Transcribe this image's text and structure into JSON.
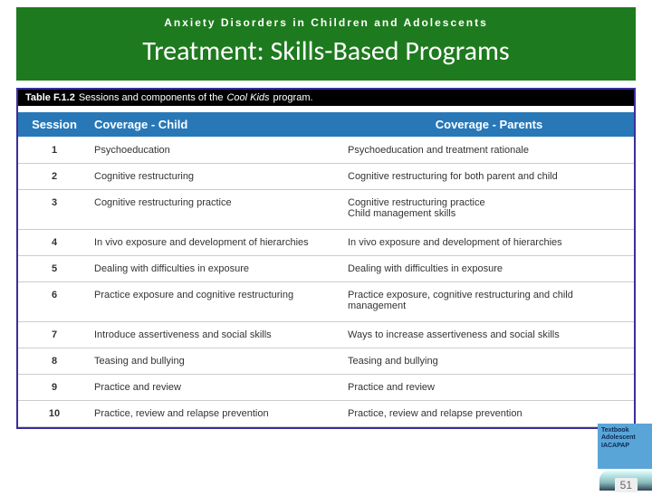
{
  "header": {
    "subtitle": "Anxiety Disorders in Children and Adolescents",
    "title": "Treatment: Skills-Based Programs"
  },
  "table": {
    "caption_prefix": "Table F.1.2",
    "caption_mid": "Sessions and components of the",
    "caption_italic": "Cool Kids",
    "caption_suffix": "program.",
    "head": {
      "session": "Session",
      "child": "Coverage - Child",
      "parent": "Coverage - Parents"
    },
    "rows": [
      {
        "n": "1",
        "child": "Psychoeducation",
        "parent": "Psychoeducation and treatment rationale"
      },
      {
        "n": "2",
        "child": "Cognitive restructuring",
        "parent": "Cognitive restructuring for both parent and child"
      },
      {
        "n": "3",
        "child": "Cognitive restructuring practice",
        "parent": "Cognitive restructuring practice\nChild management skills"
      },
      {
        "n": "4",
        "child": "In vivo exposure and development of hierarchies",
        "parent": "In vivo exposure and development of hierarchies"
      },
      {
        "n": "5",
        "child": "Dealing with difficulties in exposure",
        "parent": "Dealing with difficulties in exposure"
      },
      {
        "n": "6",
        "child": "Practice exposure and cognitive restructuring",
        "parent": "Practice exposure, cognitive restructuring and child management"
      },
      {
        "n": "7",
        "child": "Introduce assertiveness and social skills",
        "parent": "Ways to increase assertiveness and social skills"
      },
      {
        "n": "8",
        "child": "Teasing and bullying",
        "parent": "Teasing and bullying"
      },
      {
        "n": "9",
        "child": "Practice and review",
        "parent": "Practice and review"
      },
      {
        "n": "10",
        "child": "Practice, review and relapse prevention",
        "parent": "Practice, review and relapse prevention"
      }
    ]
  },
  "badge": {
    "line1": "Textbook",
    "line2": "Adolescent",
    "line3": "IACAPAP"
  },
  "page_number": "51",
  "colors": {
    "header_bg": "#1e7a1e",
    "table_border": "#3a2e9a",
    "table_head_bg": "#2878b8",
    "caption_bg": "#000000"
  }
}
